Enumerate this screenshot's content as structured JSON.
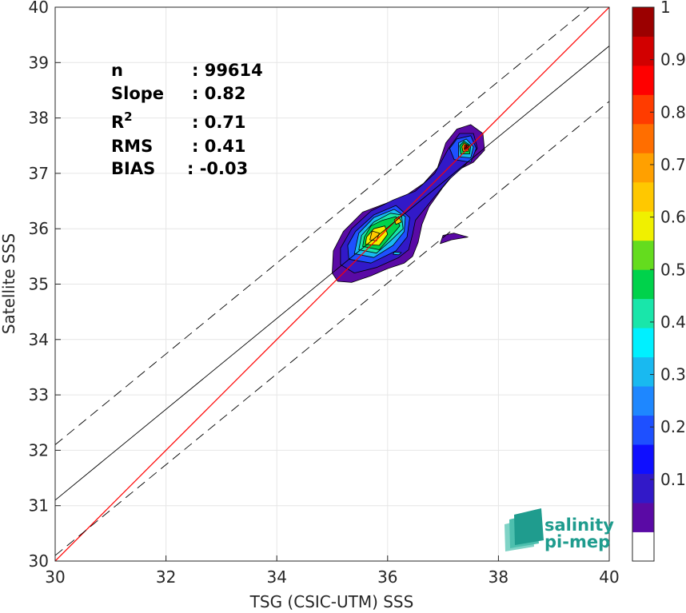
{
  "chart_data": {
    "type": "heatmap",
    "xlabel": "TSG (CSIC-UTM) SSS",
    "ylabel": "Satellite SSS",
    "xlim": [
      30,
      40
    ],
    "ylim": [
      30,
      40
    ],
    "xticks": [
      "30",
      "32",
      "34",
      "36",
      "38",
      "40"
    ],
    "yticks": [
      "30",
      "31",
      "32",
      "33",
      "34",
      "35",
      "36",
      "37",
      "38",
      "39",
      "40"
    ],
    "grid": true,
    "stats": [
      {
        "name": "n",
        "value": ": 99614"
      },
      {
        "name": "Slope",
        "value": ": 0.82"
      },
      {
        "name": "R",
        "sup": "2",
        "value": ": 0.71"
      },
      {
        "name": "RMS",
        "value": ": 0.41"
      },
      {
        "name": "BIAS",
        "value": ": -0.03"
      }
    ],
    "lines": {
      "identity": {
        "color": "#ff0000",
        "x": [
          30,
          40
        ],
        "y": [
          30,
          40
        ]
      },
      "regression": {
        "color": "#000000",
        "slope": 0.82,
        "intercept": 6.5
      },
      "upper_dashed": {
        "color": "#000000",
        "slope": 0.82,
        "intercept": 7.5
      },
      "lower_dashed": {
        "color": "#000000",
        "slope": 0.82,
        "intercept": 5.5
      }
    },
    "colorbar": {
      "range": [
        0,
        1
      ],
      "ticks": [
        "0.1",
        "0.2",
        "0.3",
        "0.4",
        "0.5",
        "0.6",
        "0.7",
        "0.8",
        "0.9",
        "1"
      ],
      "colors": [
        "#ffffff",
        "#5a0aa5",
        "#3219c8",
        "#0f0fff",
        "#1e50ff",
        "#1e87ff",
        "#19b9f0",
        "#00f0ff",
        "#19e6aa",
        "#00d24b",
        "#64dc1e",
        "#f0f000",
        "#ffc800",
        "#ffa000",
        "#ff6e00",
        "#ff3c00",
        "#ff0000",
        "#d20000",
        "#9b0000"
      ]
    },
    "density_contours": [
      {
        "level": 0.05,
        "points": [
          [
            35.0,
            35.2
          ],
          [
            35.1,
            35.05
          ],
          [
            35.35,
            35.03
          ],
          [
            35.7,
            35.15
          ],
          [
            36.0,
            35.28
          ],
          [
            36.3,
            35.38
          ],
          [
            36.45,
            35.5
          ],
          [
            36.55,
            35.75
          ],
          [
            36.62,
            36.08
          ],
          [
            36.75,
            36.4
          ],
          [
            37.0,
            36.75
          ],
          [
            37.25,
            37.05
          ],
          [
            37.55,
            37.2
          ],
          [
            37.75,
            37.42
          ],
          [
            37.72,
            37.72
          ],
          [
            37.5,
            37.88
          ],
          [
            37.25,
            37.8
          ],
          [
            37.05,
            37.55
          ],
          [
            36.9,
            37.1
          ],
          [
            36.65,
            36.82
          ],
          [
            36.3,
            36.58
          ],
          [
            35.95,
            36.45
          ],
          [
            35.55,
            36.3
          ],
          [
            35.2,
            35.95
          ],
          [
            35.02,
            35.6
          ]
        ]
      },
      {
        "level": 0.05,
        "points": [
          [
            36.95,
            35.73
          ],
          [
            37.15,
            35.8
          ],
          [
            37.45,
            35.85
          ],
          [
            37.2,
            35.92
          ],
          [
            37.0,
            35.88
          ]
        ]
      },
      {
        "level": 0.1,
        "points": [
          [
            35.15,
            35.35
          ],
          [
            35.4,
            35.2
          ],
          [
            35.8,
            35.3
          ],
          [
            36.2,
            35.48
          ],
          [
            36.38,
            35.62
          ],
          [
            36.45,
            35.9
          ],
          [
            36.5,
            36.15
          ],
          [
            36.8,
            36.52
          ],
          [
            37.1,
            36.88
          ],
          [
            37.4,
            37.15
          ],
          [
            37.62,
            37.45
          ],
          [
            37.55,
            37.72
          ],
          [
            37.3,
            37.72
          ],
          [
            37.1,
            37.45
          ],
          [
            36.85,
            37.0
          ],
          [
            36.5,
            36.68
          ],
          [
            36.1,
            36.52
          ],
          [
            35.7,
            36.32
          ],
          [
            35.35,
            36.0
          ],
          [
            35.15,
            35.65
          ]
        ]
      },
      {
        "level": 0.2,
        "points": [
          [
            35.3,
            35.45
          ],
          [
            35.7,
            35.38
          ],
          [
            36.15,
            35.6
          ],
          [
            36.35,
            35.85
          ],
          [
            36.4,
            36.2
          ],
          [
            36.15,
            36.42
          ],
          [
            35.75,
            36.25
          ],
          [
            35.42,
            35.95
          ],
          [
            35.28,
            35.7
          ]
        ]
      },
      {
        "level": 0.2,
        "points": [
          [
            37.2,
            37.25
          ],
          [
            37.5,
            37.2
          ],
          [
            37.6,
            37.45
          ],
          [
            37.5,
            37.68
          ],
          [
            37.25,
            37.62
          ],
          [
            37.12,
            37.45
          ]
        ]
      },
      {
        "level": 0.3,
        "points": [
          [
            35.4,
            35.55
          ],
          [
            35.75,
            35.48
          ],
          [
            36.1,
            35.7
          ],
          [
            36.3,
            35.95
          ],
          [
            36.32,
            36.22
          ],
          [
            36.12,
            36.35
          ],
          [
            35.75,
            36.2
          ],
          [
            35.48,
            35.92
          ]
        ]
      },
      {
        "level": 0.4,
        "points": [
          [
            35.48,
            35.62
          ],
          [
            35.8,
            35.56
          ],
          [
            36.05,
            35.78
          ],
          [
            36.28,
            36.0
          ],
          [
            36.25,
            36.25
          ],
          [
            36.05,
            36.28
          ],
          [
            35.75,
            36.12
          ],
          [
            35.53,
            35.88
          ]
        ]
      },
      {
        "level": 0.5,
        "points": [
          [
            35.55,
            35.68
          ],
          [
            35.85,
            35.62
          ],
          [
            36.05,
            35.85
          ],
          [
            36.22,
            36.05
          ],
          [
            36.15,
            36.22
          ],
          [
            35.9,
            36.15
          ],
          [
            35.7,
            36.05
          ],
          [
            35.58,
            35.85
          ]
        ]
      },
      {
        "level": 0.6,
        "points": [
          [
            35.6,
            35.72
          ],
          [
            35.85,
            35.7
          ],
          [
            36.0,
            35.9
          ],
          [
            35.95,
            36.05
          ],
          [
            35.75,
            36.0
          ],
          [
            35.62,
            35.85
          ]
        ]
      },
      {
        "level": 0.65,
        "points": [
          [
            35.68,
            35.8
          ],
          [
            35.8,
            35.78
          ],
          [
            35.85,
            35.92
          ],
          [
            35.72,
            35.96
          ]
        ]
      },
      {
        "level": 0.65,
        "points": [
          [
            36.15,
            36.08
          ],
          [
            36.25,
            36.12
          ],
          [
            36.2,
            36.22
          ],
          [
            36.12,
            36.16
          ]
        ]
      },
      {
        "level": 0.3,
        "points": [
          [
            37.28,
            37.3
          ],
          [
            37.5,
            37.28
          ],
          [
            37.55,
            37.48
          ],
          [
            37.42,
            37.62
          ],
          [
            37.28,
            37.55
          ]
        ]
      },
      {
        "level": 0.5,
        "points": [
          [
            37.32,
            37.35
          ],
          [
            37.48,
            37.35
          ],
          [
            37.5,
            37.5
          ],
          [
            37.38,
            37.58
          ],
          [
            37.3,
            37.5
          ]
        ]
      },
      {
        "level": 0.7,
        "points": [
          [
            37.36,
            37.4
          ],
          [
            37.46,
            37.4
          ],
          [
            37.47,
            37.5
          ],
          [
            37.38,
            37.55
          ],
          [
            37.34,
            37.48
          ]
        ]
      },
      {
        "level": 0.85,
        "points": [
          [
            37.38,
            37.43
          ],
          [
            37.45,
            37.43
          ],
          [
            37.45,
            37.5
          ],
          [
            37.39,
            37.52
          ]
        ]
      },
      {
        "level": 1.0,
        "points": [
          [
            37.4,
            37.45
          ],
          [
            37.44,
            37.46
          ],
          [
            37.42,
            37.5
          ]
        ]
      },
      {
        "level": 0.3,
        "points": [
          [
            36.1,
            35.54
          ],
          [
            36.2,
            35.53
          ],
          [
            36.25,
            35.57
          ],
          [
            36.12,
            35.58
          ]
        ]
      }
    ]
  },
  "logo": {
    "line1": "salinity",
    "line2": "pi-mep",
    "colors": [
      "#7fd3c6",
      "#4dbfae",
      "#1f9c8e"
    ]
  }
}
